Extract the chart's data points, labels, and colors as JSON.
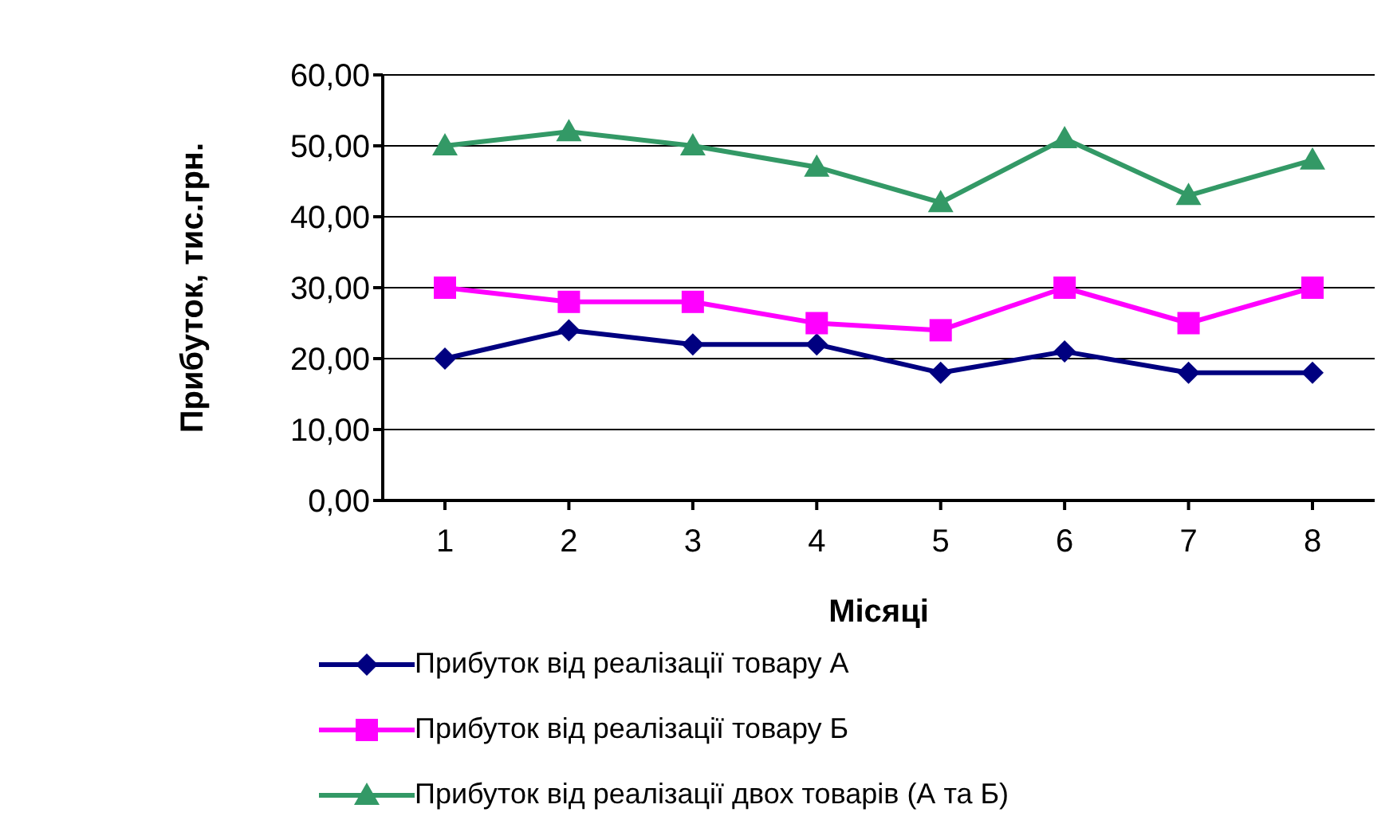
{
  "chart_data": {
    "type": "line",
    "xlabel": "Місяці",
    "ylabel": "Прибуток, тис.грн.",
    "categories": [
      "1",
      "2",
      "3",
      "4",
      "5",
      "6",
      "7",
      "8"
    ],
    "series": [
      {
        "name": "Прибуток від реалізації товару А",
        "color": "#000080",
        "marker": "diamond",
        "values": [
          20,
          24,
          22,
          22,
          18,
          21,
          18,
          18
        ]
      },
      {
        "name": "Прибуток від реалізації товару Б",
        "color": "#ff00ff",
        "marker": "square",
        "values": [
          30,
          28,
          28,
          25,
          24,
          30,
          25,
          30
        ]
      },
      {
        "name": "Прибуток від реалізації двох товарів (А та Б)",
        "color": "#339966",
        "marker": "triangle",
        "values": [
          50,
          52,
          50,
          47,
          42,
          51,
          43,
          48
        ]
      }
    ],
    "ylim": [
      0,
      60
    ],
    "yticks": [
      {
        "value": 0,
        "label": "0,00"
      },
      {
        "value": 10,
        "label": "10,00"
      },
      {
        "value": 20,
        "label": "20,00"
      },
      {
        "value": 30,
        "label": "30,00"
      },
      {
        "value": 40,
        "label": "40,00"
      },
      {
        "value": 50,
        "label": "50,00"
      },
      {
        "value": 60,
        "label": "60,00"
      }
    ],
    "grid": "y",
    "legend": "bottom",
    "line_style": "solid"
  }
}
